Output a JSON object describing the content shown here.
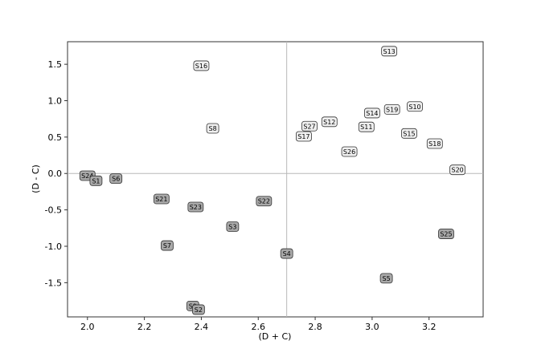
{
  "chart_data": {
    "type": "scatter",
    "title": "",
    "xlabel": "(D + C)",
    "ylabel": "(D - C)",
    "xlim": [
      1.93,
      3.39
    ],
    "ylim": [
      -1.97,
      1.81
    ],
    "xticks": [
      "2.0",
      "2.2",
      "2.4",
      "2.6",
      "2.8",
      "3.0",
      "3.2"
    ],
    "yticks": [
      "-1.5",
      "-1.0",
      "-0.5",
      "0.0",
      "0.5",
      "1.0",
      "1.5"
    ],
    "reference_lines": {
      "x": 2.7,
      "y": 0.0
    },
    "grid": false,
    "colors": {
      "above": "#efefef",
      "below": "#a9a9a9",
      "ref_line": "#b8b8b8"
    },
    "points": [
      {
        "label": "S13",
        "x": 3.06,
        "y": 1.68,
        "group": "above"
      },
      {
        "label": "S16",
        "x": 2.4,
        "y": 1.48,
        "group": "above"
      },
      {
        "label": "S10",
        "x": 3.15,
        "y": 0.92,
        "group": "above"
      },
      {
        "label": "S19",
        "x": 3.07,
        "y": 0.88,
        "group": "above"
      },
      {
        "label": "S14",
        "x": 3.0,
        "y": 0.83,
        "group": "above"
      },
      {
        "label": "S12",
        "x": 2.85,
        "y": 0.71,
        "group": "above"
      },
      {
        "label": "S27",
        "x": 2.78,
        "y": 0.65,
        "group": "above"
      },
      {
        "label": "S11",
        "x": 2.98,
        "y": 0.64,
        "group": "above"
      },
      {
        "label": "S8",
        "x": 2.44,
        "y": 0.62,
        "group": "above"
      },
      {
        "label": "S15",
        "x": 3.13,
        "y": 0.55,
        "group": "above"
      },
      {
        "label": "S17",
        "x": 2.76,
        "y": 0.51,
        "group": "above"
      },
      {
        "label": "S18",
        "x": 3.22,
        "y": 0.41,
        "group": "above"
      },
      {
        "label": "S26",
        "x": 2.92,
        "y": 0.3,
        "group": "above"
      },
      {
        "label": "S20",
        "x": 3.3,
        "y": 0.05,
        "group": "above"
      },
      {
        "label": "S24",
        "x": 2.0,
        "y": -0.03,
        "group": "below"
      },
      {
        "label": "S1",
        "x": 2.03,
        "y": -0.1,
        "group": "below"
      },
      {
        "label": "S6",
        "x": 2.1,
        "y": -0.07,
        "group": "below"
      },
      {
        "label": "S21",
        "x": 2.26,
        "y": -0.35,
        "group": "below"
      },
      {
        "label": "S22",
        "x": 2.62,
        "y": -0.38,
        "group": "below"
      },
      {
        "label": "S23",
        "x": 2.38,
        "y": -0.46,
        "group": "below"
      },
      {
        "label": "S3",
        "x": 2.51,
        "y": -0.73,
        "group": "below"
      },
      {
        "label": "S25",
        "x": 3.26,
        "y": -0.83,
        "group": "below"
      },
      {
        "label": "S7",
        "x": 2.28,
        "y": -0.99,
        "group": "below"
      },
      {
        "label": "S4",
        "x": 2.7,
        "y": -1.1,
        "group": "below"
      },
      {
        "label": "S5",
        "x": 3.05,
        "y": -1.44,
        "group": "below"
      },
      {
        "label": "S9",
        "x": 2.37,
        "y": -1.82,
        "group": "below"
      },
      {
        "label": "S2",
        "x": 2.39,
        "y": -1.87,
        "group": "below"
      }
    ]
  }
}
